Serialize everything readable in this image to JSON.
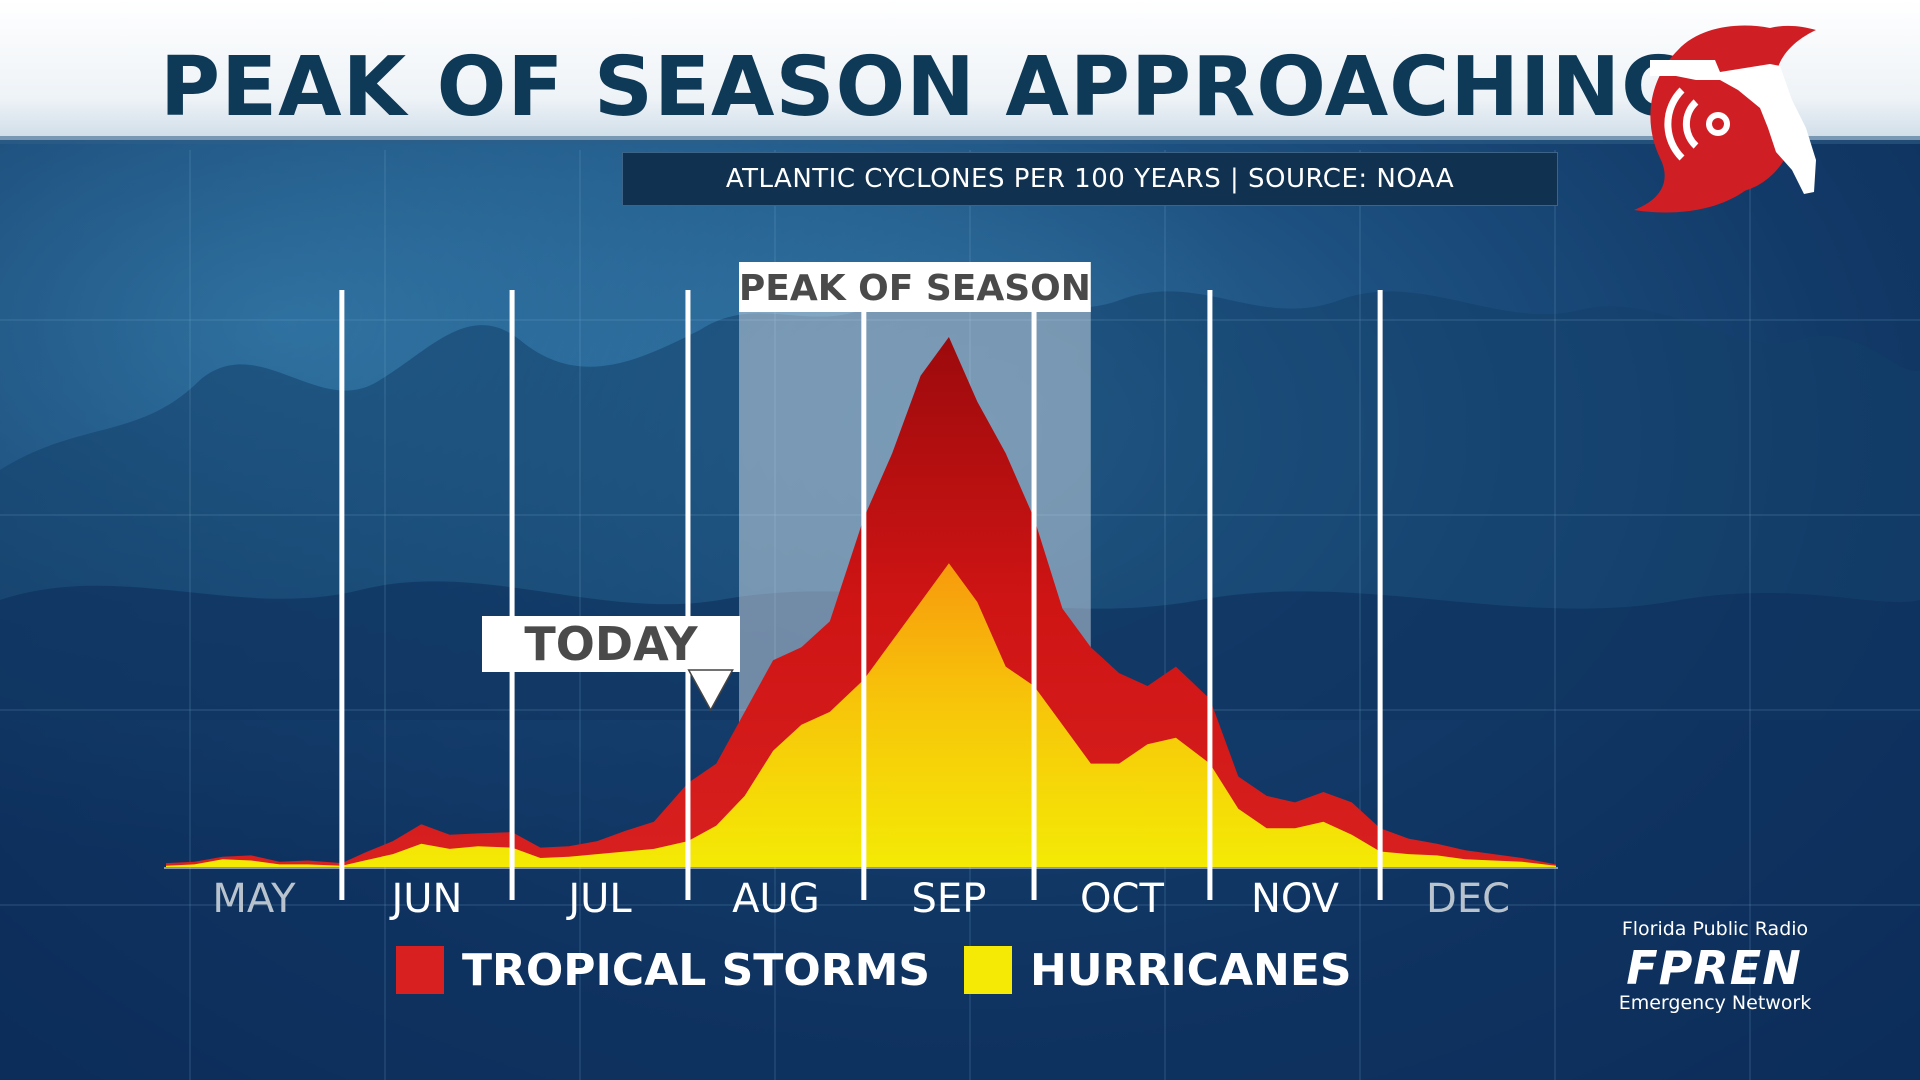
{
  "header": {
    "title": "PEAK OF SEASON APPROACHING",
    "subtitle": "ATLANTIC CYCLONES PER 100 YEARS | SOURCE: NOAA"
  },
  "logo": {
    "icon": "florida-hurricane-logo-icon",
    "color": "#d01f24"
  },
  "branding": {
    "top": "Florida Public Radio",
    "name": "FPREN",
    "bottom": "Emergency Network"
  },
  "chart_data": {
    "type": "area",
    "x_unit": "day-of-season (May 1 = 0)",
    "months": [
      "MAY",
      "JUN",
      "JUL",
      "AUG",
      "SEP",
      "OCT",
      "NOV",
      "DEC"
    ],
    "month_divider_days": [
      31,
      61,
      92,
      123,
      153,
      184,
      214
    ],
    "highlight": {
      "label": "PEAK OF SEASON",
      "start_day": 101,
      "end_day": 163
    },
    "today": {
      "label": "TODAY",
      "day": 96
    },
    "legend": [
      {
        "name": "TROPICAL STORMS",
        "color": "#d7201f"
      },
      {
        "name": "HURRICANES",
        "color": "#f4ea05"
      }
    ],
    "x": [
      0,
      5,
      10,
      15,
      20,
      25,
      31,
      35,
      40,
      45,
      50,
      55,
      61,
      66,
      71,
      76,
      81,
      86,
      92,
      97,
      102,
      107,
      112,
      117,
      123,
      128,
      133,
      138,
      143,
      148,
      153,
      158,
      163,
      168,
      173,
      178,
      184,
      189,
      194,
      199,
      204,
      209,
      214,
      219,
      224,
      229,
      234,
      239,
      245
    ],
    "series": [
      {
        "name": "TROPICAL STORMS",
        "color": "#d7201f",
        "values": [
          0.3,
          0.4,
          0.8,
          0.9,
          0.4,
          0.5,
          0.3,
          1.1,
          2.0,
          3.3,
          2.5,
          2.6,
          2.7,
          1.5,
          1.6,
          2.0,
          2.8,
          3.5,
          6.5,
          8.0,
          12.0,
          16.0,
          17.0,
          19.0,
          27.0,
          32.0,
          38.0,
          41.0,
          36.0,
          32.0,
          27.0,
          20.0,
          17.0,
          15.0,
          14.0,
          15.5,
          13.0,
          7.0,
          5.5,
          5.0,
          5.8,
          5.0,
          3.0,
          2.2,
          1.8,
          1.3,
          1.0,
          0.7,
          0.2
        ]
      },
      {
        "name": "HURRICANES",
        "color": "#f4ea05",
        "values": [
          0.1,
          0.2,
          0.6,
          0.5,
          0.2,
          0.2,
          0.1,
          0.5,
          1.0,
          1.8,
          1.4,
          1.6,
          1.5,
          0.7,
          0.8,
          1.0,
          1.2,
          1.4,
          2.0,
          3.2,
          5.5,
          9.0,
          11.0,
          12.0,
          14.5,
          17.5,
          20.5,
          23.5,
          20.5,
          15.5,
          14.0,
          11.0,
          8.0,
          8.0,
          9.5,
          10.0,
          8.0,
          4.5,
          3.0,
          3.0,
          3.5,
          2.5,
          1.2,
          1.0,
          0.9,
          0.6,
          0.5,
          0.4,
          0.1
        ]
      }
    ]
  }
}
